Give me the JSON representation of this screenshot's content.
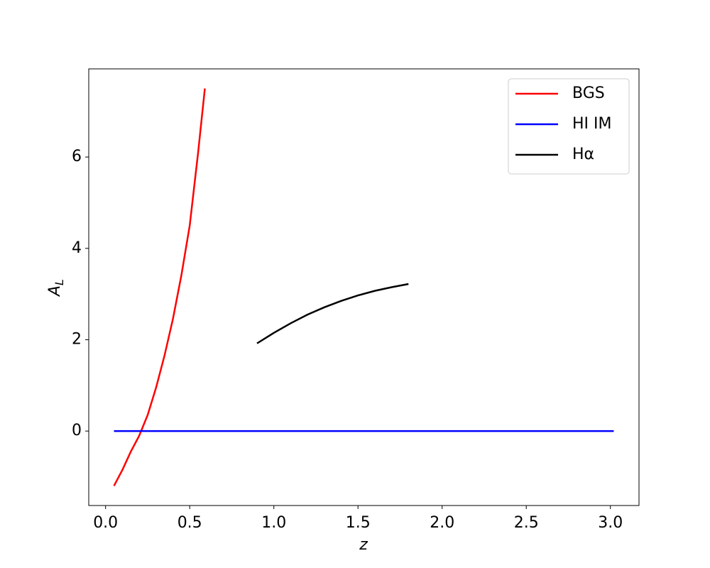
{
  "chart_data": {
    "type": "line",
    "xlabel": "z",
    "ylabel": "A_L",
    "xlim": [
      -0.1,
      3.17
    ],
    "ylim": [
      -1.63,
      7.93
    ],
    "xticks": [
      {
        "value": 0,
        "label": "0.0"
      },
      0.5,
      {
        "value": 1,
        "label": "1.0"
      },
      1.5,
      {
        "value": 2,
        "label": "2.0"
      },
      2.5,
      {
        "value": 3,
        "label": "3.0"
      }
    ],
    "yticks": [
      0,
      2,
      4,
      6
    ],
    "legend": "upper right",
    "series": [
      {
        "name": "BGS",
        "color": "#ff0000",
        "x": [
          0.05,
          0.1,
          0.15,
          0.2,
          0.25,
          0.3,
          0.35,
          0.4,
          0.45,
          0.5,
          0.55,
          0.59
        ],
        "values": [
          -1.2,
          -0.85,
          -0.45,
          -0.1,
          0.35,
          0.95,
          1.65,
          2.45,
          3.4,
          4.5,
          6.1,
          7.5
        ]
      },
      {
        "name": "HI IM",
        "color": "#0000ff",
        "x": [
          0.05,
          3.02
        ],
        "values": [
          0,
          0
        ]
      },
      {
        "name": "Hα",
        "color": "#000000",
        "x": [
          0.9,
          1.0,
          1.1,
          1.2,
          1.3,
          1.4,
          1.5,
          1.6,
          1.7,
          1.8
        ],
        "values": [
          1.92,
          2.15,
          2.36,
          2.55,
          2.71,
          2.85,
          2.97,
          3.07,
          3.15,
          3.22
        ]
      }
    ]
  }
}
